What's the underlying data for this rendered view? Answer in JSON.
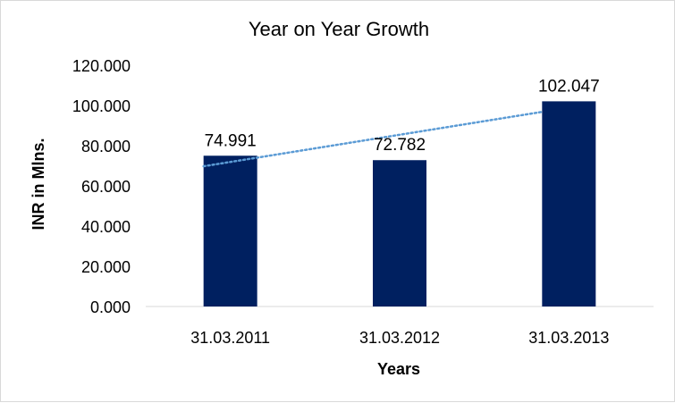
{
  "chart_data": {
    "type": "bar",
    "title": "Year on Year Growth",
    "xlabel": "Years",
    "ylabel": "INR in Mlns.",
    "categories": [
      "31.03.2011",
      "31.03.2012",
      "31.03.2013"
    ],
    "values": [
      74.991,
      72.782,
      102.047
    ],
    "data_labels": [
      "74.991",
      "72.782",
      "102.047"
    ],
    "ylim": [
      0,
      120
    ],
    "y_ticks": [
      "0.000",
      "20.000",
      "40.000",
      "60.000",
      "80.000",
      "100.000",
      "120.000"
    ],
    "y_tick_values": [
      0,
      20,
      40,
      60,
      80,
      100,
      120
    ],
    "grid": false,
    "legend": "none",
    "trendline": {
      "type": "linear",
      "style": "dotted"
    },
    "bar_color": "#002060",
    "trendline_color": "#5b9bd5"
  }
}
